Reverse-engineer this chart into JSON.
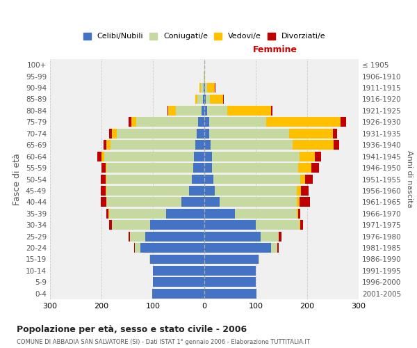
{
  "age_groups": [
    "0-4",
    "5-9",
    "10-14",
    "15-19",
    "20-24",
    "25-29",
    "30-34",
    "35-39",
    "40-44",
    "45-49",
    "50-54",
    "55-59",
    "60-64",
    "65-69",
    "70-74",
    "75-79",
    "80-84",
    "85-89",
    "90-94",
    "95-99",
    "100+"
  ],
  "birth_years": [
    "2001-2005",
    "1996-2000",
    "1991-1995",
    "1986-1990",
    "1981-1985",
    "1976-1980",
    "1971-1975",
    "1966-1970",
    "1961-1965",
    "1956-1960",
    "1951-1955",
    "1946-1950",
    "1941-1945",
    "1936-1940",
    "1931-1935",
    "1926-1930",
    "1921-1925",
    "1916-1920",
    "1911-1915",
    "1906-1910",
    "≤ 1905"
  ],
  "male_celibe": [
    102,
    100,
    100,
    105,
    125,
    115,
    105,
    75,
    45,
    30,
    25,
    22,
    20,
    18,
    15,
    12,
    5,
    3,
    2,
    0,
    0
  ],
  "male_coniugato": [
    0,
    0,
    0,
    2,
    10,
    30,
    75,
    110,
    145,
    160,
    165,
    168,
    175,
    165,
    155,
    120,
    50,
    10,
    5,
    1,
    0
  ],
  "male_vedovo": [
    0,
    0,
    0,
    0,
    0,
    0,
    0,
    1,
    1,
    2,
    2,
    2,
    5,
    8,
    10,
    10,
    15,
    5,
    3,
    0,
    0
  ],
  "male_divorziato": [
    0,
    0,
    0,
    0,
    2,
    2,
    5,
    5,
    10,
    10,
    10,
    8,
    8,
    5,
    5,
    5,
    1,
    0,
    0,
    0,
    0
  ],
  "female_celibe": [
    102,
    100,
    100,
    105,
    130,
    110,
    100,
    60,
    30,
    20,
    18,
    15,
    15,
    12,
    10,
    10,
    5,
    3,
    2,
    0,
    0
  ],
  "female_coniugata": [
    0,
    0,
    0,
    2,
    12,
    35,
    85,
    120,
    150,
    160,
    168,
    168,
    170,
    160,
    155,
    110,
    40,
    8,
    3,
    0,
    0
  ],
  "female_vedova": [
    0,
    0,
    0,
    0,
    0,
    0,
    2,
    2,
    5,
    8,
    10,
    25,
    30,
    80,
    85,
    145,
    85,
    25,
    15,
    2,
    0
  ],
  "female_divorziata": [
    0,
    0,
    0,
    0,
    2,
    5,
    5,
    5,
    20,
    15,
    15,
    15,
    12,
    10,
    8,
    10,
    2,
    2,
    1,
    0,
    0
  ],
  "colors": {
    "celibe": "#4472c4",
    "coniugato": "#c5d9a0",
    "vedovo": "#ffc000",
    "divorziato": "#c00000"
  },
  "title": "Popolazione per età, sesso e stato civile - 2006",
  "subtitle": "COMUNE DI ABBADIA SAN SALVATORE (SI) - Dati ISTAT 1° gennaio 2006 - Elaborazione TUTTITALIA.IT",
  "xlabel_right": "Femmine",
  "ylabel_left": "Fasce di età",
  "ylabel_right": "Anni di nascita",
  "xlim": 300,
  "legend_labels": [
    "Celibi/Nubili",
    "Coniugati/e",
    "Vedovi/e",
    "Divorziati/e"
  ],
  "background_color": "#ffffff",
  "plot_bg_color": "#f0f0f0",
  "grid_color": "#cccccc"
}
